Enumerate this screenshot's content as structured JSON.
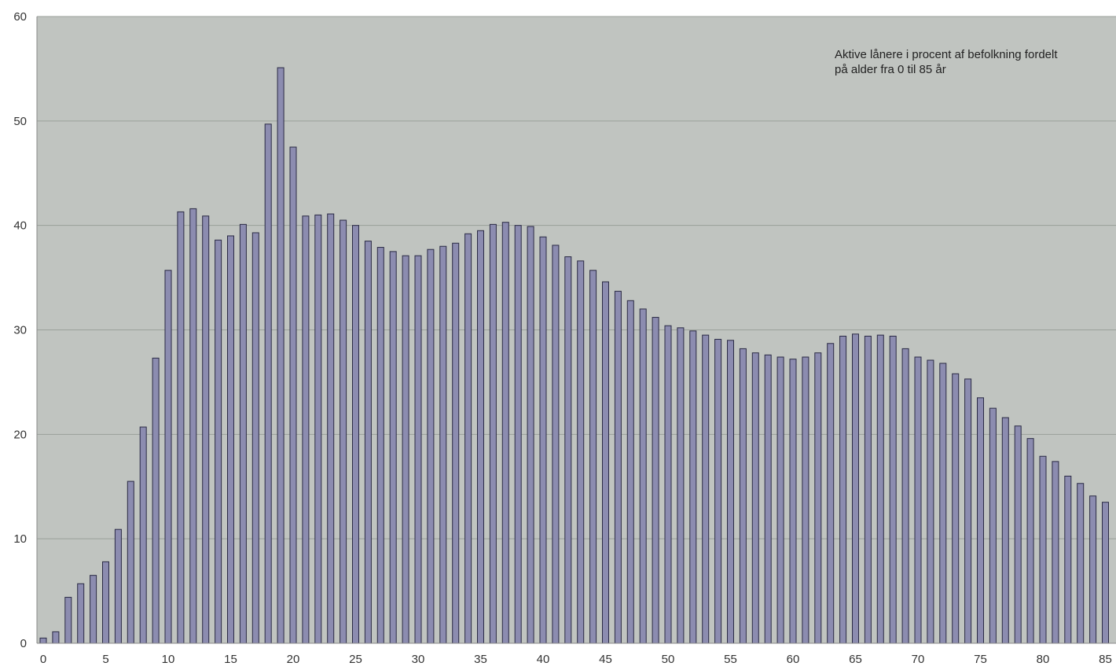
{
  "chart_data": {
    "type": "bar",
    "title": "",
    "xlabel": "",
    "ylabel": "",
    "annotation": [
      "Aktive lånere i procent af befolkning fordelt",
      "på alder fra 0 til 85 år"
    ],
    "ylim": [
      0,
      60
    ],
    "yticks": [
      0,
      10,
      20,
      30,
      40,
      50,
      60
    ],
    "xticks": [
      0,
      5,
      10,
      15,
      20,
      25,
      30,
      35,
      40,
      45,
      50,
      55,
      60,
      65,
      70,
      75,
      80,
      85
    ],
    "grid": true,
    "colors": {
      "plot_bg": "#c0c4c0",
      "bar_fill": "#8c8cb0",
      "bar_stroke": "#2a2a44",
      "grid": "#9aa09a"
    },
    "categories": [
      0,
      1,
      2,
      3,
      4,
      5,
      6,
      7,
      8,
      9,
      10,
      11,
      12,
      13,
      14,
      15,
      16,
      17,
      18,
      19,
      20,
      21,
      22,
      23,
      24,
      25,
      26,
      27,
      28,
      29,
      30,
      31,
      32,
      33,
      34,
      35,
      36,
      37,
      38,
      39,
      40,
      41,
      42,
      43,
      44,
      45,
      46,
      47,
      48,
      49,
      50,
      51,
      52,
      53,
      54,
      55,
      56,
      57,
      58,
      59,
      60,
      61,
      62,
      63,
      64,
      65,
      66,
      67,
      68,
      69,
      70,
      71,
      72,
      73,
      74,
      75,
      76,
      77,
      78,
      79,
      80,
      81,
      82,
      83,
      84,
      85
    ],
    "values": [
      0.5,
      1.1,
      4.4,
      5.7,
      6.5,
      7.8,
      10.9,
      15.5,
      20.7,
      27.3,
      35.7,
      41.3,
      41.6,
      40.9,
      38.6,
      39.0,
      40.1,
      39.3,
      49.7,
      55.1,
      47.5,
      40.9,
      41.0,
      41.1,
      40.5,
      40.0,
      38.5,
      37.9,
      37.5,
      37.1,
      37.1,
      37.7,
      38.0,
      38.3,
      39.2,
      39.5,
      40.1,
      40.3,
      40.0,
      39.9,
      38.9,
      38.1,
      37.0,
      36.6,
      35.7,
      34.6,
      33.7,
      32.8,
      32.0,
      31.2,
      30.4,
      30.2,
      29.9,
      29.5,
      29.1,
      29.0,
      28.2,
      27.8,
      27.6,
      27.4,
      27.2,
      27.4,
      27.8,
      28.7,
      29.4,
      29.6,
      29.4,
      29.5,
      29.4,
      28.2,
      27.4,
      27.1,
      26.8,
      25.8,
      25.3,
      23.5,
      22.5,
      21.6,
      20.8,
      19.6,
      17.9,
      17.4,
      16.0,
      15.3,
      14.1,
      13.5
    ]
  }
}
